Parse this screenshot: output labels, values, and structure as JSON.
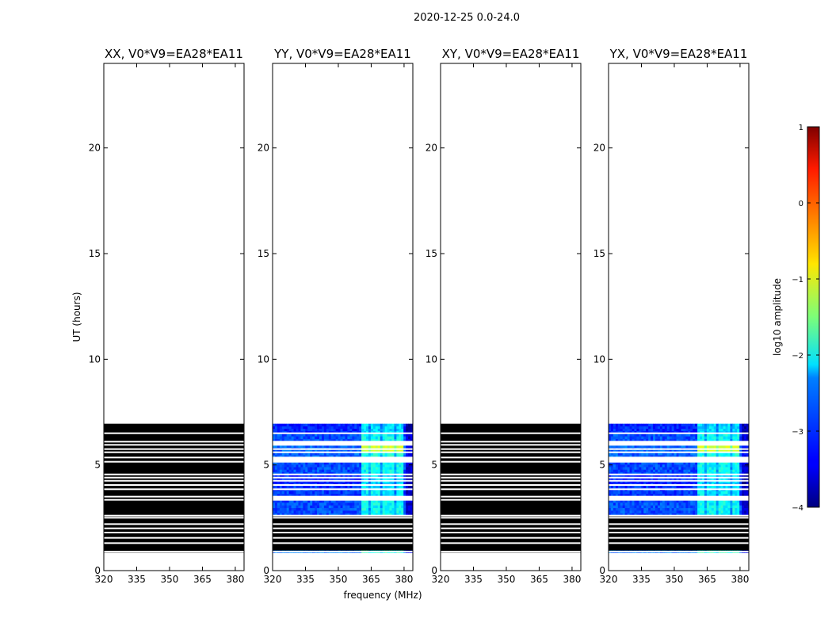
{
  "chart_data": {
    "type": "heatmap",
    "suptitle": "2020-12-25 0.0-24.0",
    "xlabel": "frequency (MHz)",
    "ylabel": "UT (hours)",
    "xlim": [
      320,
      384
    ],
    "ylim": [
      0,
      24
    ],
    "xticks": [
      320,
      335,
      350,
      365,
      380
    ],
    "yticks": [
      0,
      5,
      10,
      15,
      20
    ],
    "data_time_range_hours": [
      0.85,
      6.95
    ],
    "gap_rows_hours": [
      0.75,
      0.9,
      1.3,
      1.55,
      1.8,
      2.0,
      2.2,
      2.5,
      2.6,
      3.35,
      3.5,
      3.85,
      4.05,
      4.25,
      4.4,
      4.55,
      5.15,
      5.35,
      5.6,
      5.75,
      5.95,
      6.1,
      6.5
    ],
    "panels": [
      {
        "title": "XX, V0*V9=EA28*EA11",
        "mode": "black"
      },
      {
        "title": "YY, V0*V9=EA28*EA11",
        "mode": "spectrum"
      },
      {
        "title": "XY, V0*V9=EA28*EA11",
        "mode": "black"
      },
      {
        "title": "YX, V0*V9=EA28*EA11",
        "mode": "spectrum"
      }
    ],
    "spectrum_bands": [
      {
        "t0": 0.85,
        "t1": 0.95,
        "level": -2.8
      },
      {
        "t0": 2.6,
        "t1": 3.35,
        "level": -3.0
      },
      {
        "t0": 3.5,
        "t1": 4.05,
        "level": -3.1
      },
      {
        "t0": 4.05,
        "t1": 4.55,
        "level": -3.2
      },
      {
        "t0": 4.55,
        "t1": 5.15,
        "level": -3.0
      },
      {
        "t0": 5.35,
        "t1": 5.95,
        "level": -2.9
      },
      {
        "t0": 6.1,
        "t1": 6.5,
        "level": -3.0
      },
      {
        "t0": 6.5,
        "t1": 6.95,
        "level": -3.2
      }
    ],
    "bright_region": {
      "freq_range_MHz": [
        361,
        380
      ],
      "peak_time_hours": [
        5.6,
        5.95
      ],
      "peak_level": -1.1
    },
    "colorbar": {
      "label": "log10 amplitude",
      "range": [
        -4,
        1
      ],
      "ticks": [
        1,
        0,
        -1,
        -2,
        -3,
        -4
      ],
      "tick_labels": [
        "1",
        "0",
        "−1",
        "−2",
        "−3",
        "−4"
      ],
      "colormap": "jet"
    }
  }
}
